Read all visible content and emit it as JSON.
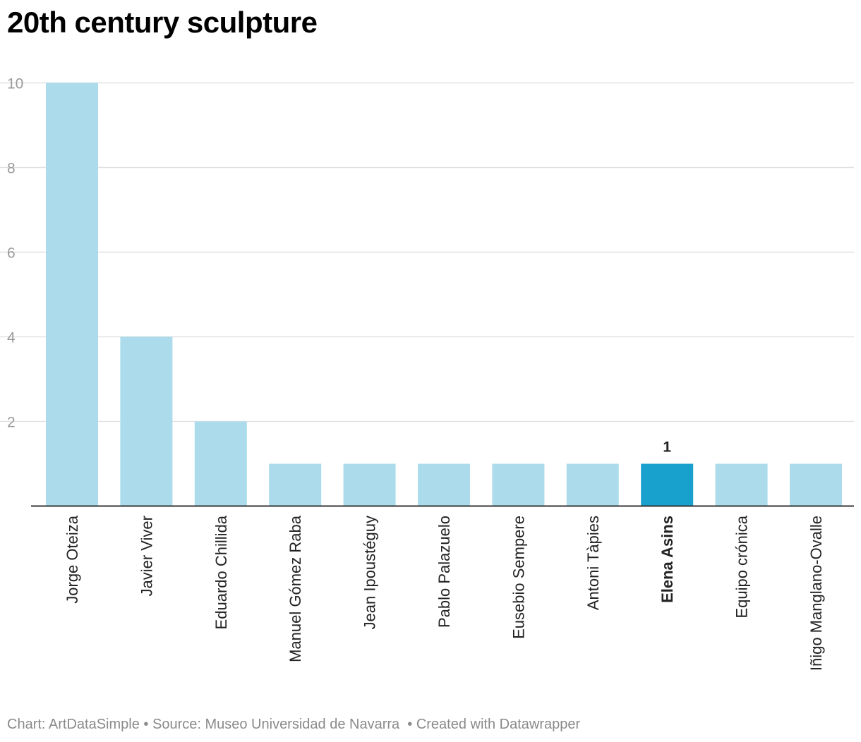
{
  "title": "20th century sculpture",
  "footer": {
    "chart_credit": "Chart: ArtDataSimple",
    "source": "Source: Museo Universidad de Navarra",
    "created_with": "Created with Datawrapper"
  },
  "colors": {
    "bar": "#acdcec",
    "bar_highlight": "#18a1cd",
    "grid": "#e1e1e1",
    "axis": "#333333",
    "tick_label": "#9a9a9a",
    "category_label": "#222222"
  },
  "chart_data": {
    "type": "bar",
    "categories": [
      "Jorge Oteiza",
      "Javier Viver",
      "Eduardo Chillida",
      "Manuel Gómez Raba",
      "Jean Ipoustéguy",
      "Pablo Palazuelo",
      "Eusebio Sempere",
      "Antoni Tàpies",
      "Elena Asins",
      "Equipo crónica",
      "Iñigo Manglano-Ovalle"
    ],
    "values": [
      10,
      4,
      2,
      1,
      1,
      1,
      1,
      1,
      1,
      1,
      1
    ],
    "highlight": "Elena Asins",
    "highlight_value_label": "1",
    "ylim": [
      0,
      10
    ],
    "yticks": [
      2,
      4,
      6,
      8,
      10
    ],
    "grid": true,
    "xlabel": "",
    "ylabel": ""
  }
}
